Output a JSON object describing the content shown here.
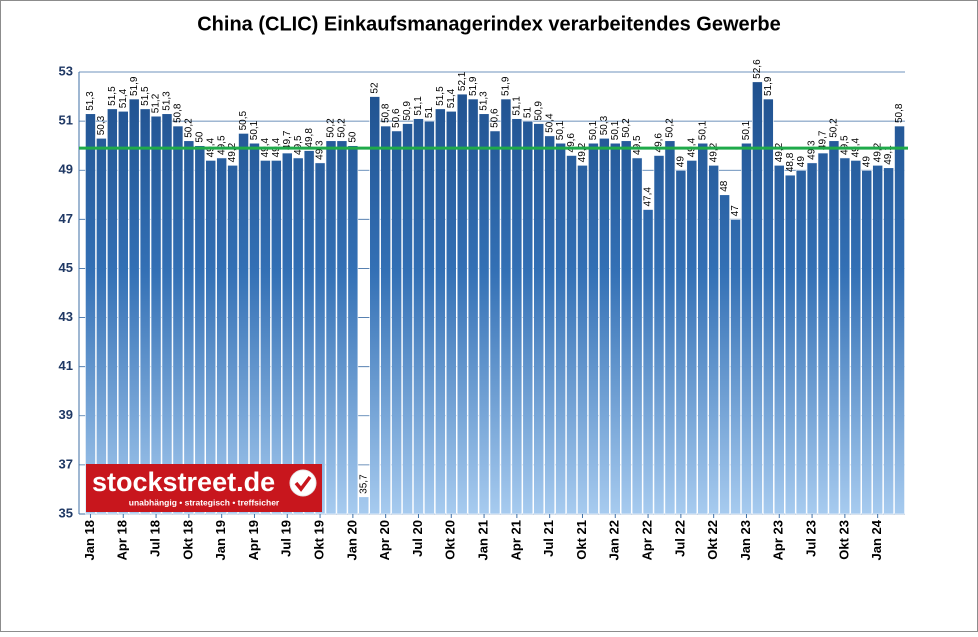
{
  "chart_data": {
    "type": "bar",
    "title": "China (CLIC) Einkaufsmanagerindex verarbeitendes Gewerbe",
    "categories": [
      "Jan 18",
      null,
      null,
      "Apr 18",
      null,
      null,
      "Jul 18",
      null,
      null,
      "Okt 18",
      null,
      null,
      "Jan 19",
      null,
      null,
      "Apr 19",
      null,
      null,
      "Jul 19",
      null,
      null,
      "Okt 19",
      null,
      null,
      "Jan 20",
      null,
      null,
      "Apr 20",
      null,
      null,
      "Jul 20",
      null,
      null,
      "Okt 20",
      null,
      null,
      "Jan 21",
      null,
      null,
      "Apr 21",
      null,
      null,
      "Jul 21",
      null,
      null,
      "Okt 21",
      null,
      null,
      "Jan 22",
      null,
      null,
      "Apr 22",
      null,
      null,
      "Jul 22",
      null,
      null,
      "Okt 22",
      null,
      null,
      "Jan 23",
      null,
      null,
      "Apr 23",
      null,
      null,
      "Jul 23",
      null,
      null,
      "Okt 23",
      null,
      null,
      "Jan 24",
      null,
      null
    ],
    "values": [
      51.3,
      50.3,
      51.5,
      51.4,
      51.9,
      51.5,
      51.2,
      51.3,
      50.8,
      50.2,
      50,
      49.4,
      49.5,
      49.2,
      50.5,
      50.1,
      49.4,
      49.4,
      49.7,
      49.5,
      49.8,
      49.3,
      50.2,
      50.2,
      50,
      35.7,
      52,
      50.8,
      50.6,
      50.9,
      51.1,
      51,
      51.5,
      51.4,
      52.1,
      51.9,
      51.3,
      50.6,
      51.9,
      51.1,
      51,
      50.9,
      50.4,
      50.1,
      49.6,
      49.2,
      50.1,
      50.3,
      50.1,
      50.2,
      49.5,
      47.4,
      49.6,
      50.2,
      49,
      49.4,
      50.1,
      49.2,
      48,
      47,
      50.1,
      52.6,
      51.9,
      49.2,
      48.8,
      49,
      49.3,
      49.7,
      50.2,
      49.5,
      49.4,
      49,
      49.2,
      49.1,
      50.8
    ],
    "value_labels": [
      "51,3",
      "50,3",
      "51,5",
      "51,4",
      "51,9",
      "51,5",
      "51,2",
      "51,3",
      "50,8",
      "50,2",
      "50",
      "49,4",
      "49,5",
      "49,2",
      "50,5",
      "50,1",
      "49,4",
      "49,4",
      "49,7",
      "49,5",
      "49,8",
      "49,3",
      "50,2",
      "50,2",
      "50",
      "35,7",
      "52",
      "50,8",
      "50,6",
      "50,9",
      "51,1",
      "51",
      "51,5",
      "51,4",
      "52,1",
      "51,9",
      "51,3",
      "50,6",
      "51,9",
      "51,1",
      "51",
      "50,9",
      "50,4",
      "50,1",
      "49,6",
      "49,2",
      "50,1",
      "50,3",
      "50,1",
      "50,2",
      "49,5",
      "47,4",
      "49,6",
      "50,2",
      "49",
      "49,4",
      "50,1",
      "49,2",
      "48",
      "47",
      "50,1",
      "52,6",
      "51,9",
      "49,2",
      "48,8",
      "49",
      "49,3",
      "49,7",
      "50,2",
      "49,5",
      "49,4",
      "49",
      "49,2",
      "49,1",
      "50,8"
    ],
    "color": "#1f4f8c",
    "reference_line": {
      "value": 49.9,
      "color": "#1faa4a"
    },
    "ylim": [
      35,
      53
    ],
    "yticks": [
      35,
      37,
      39,
      41,
      43,
      45,
      47,
      49,
      51,
      53
    ],
    "grid": true,
    "logo": {
      "name": "stockstreet.de",
      "slogan": "unabhängig • strategisch • treffsicher"
    }
  }
}
